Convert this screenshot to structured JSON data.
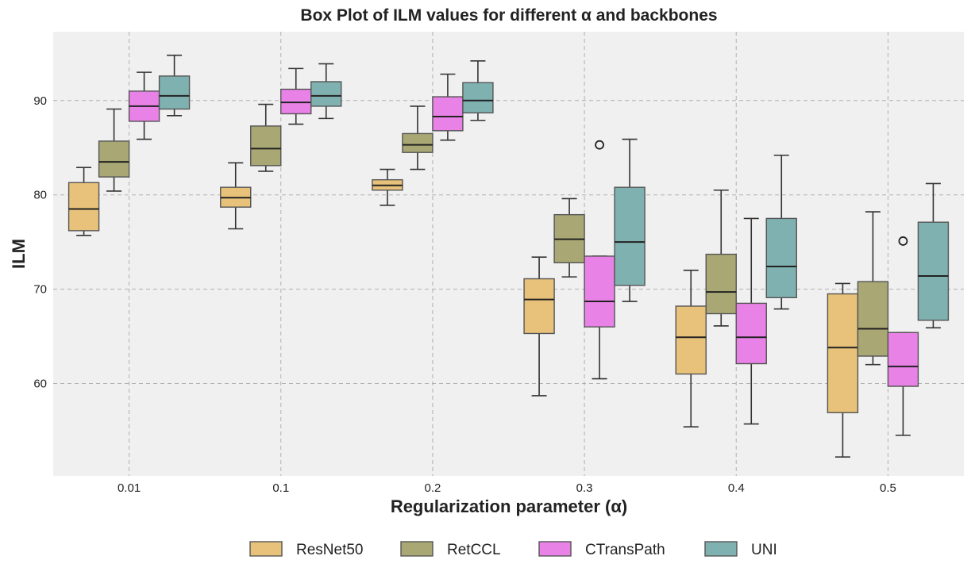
{
  "chart_data": {
    "type": "boxplot",
    "title": "Box Plot of ILM values for different α and backbones",
    "xlabel": "Regularization parameter (α)",
    "ylabel": "ILM",
    "categories": [
      "0.01",
      "0.1",
      "0.2",
      "0.3",
      "0.4",
      "0.5"
    ],
    "ylim": [
      50.2,
      97.3
    ],
    "yticks": [
      60,
      70,
      80,
      90
    ],
    "grid": true,
    "legend_position": "bottom-center",
    "series": [
      {
        "name": "ResNet50",
        "color": "#e8c27a",
        "boxes": [
          {
            "whislo": 75.7,
            "q1": 76.2,
            "med": 78.5,
            "q3": 81.3,
            "whishi": 82.9,
            "fliers": []
          },
          {
            "whislo": 76.4,
            "q1": 78.7,
            "med": 79.7,
            "q3": 80.8,
            "whishi": 83.4,
            "fliers": []
          },
          {
            "whislo": 78.9,
            "q1": 80.5,
            "med": 81.0,
            "q3": 81.6,
            "whishi": 82.7,
            "fliers": []
          },
          {
            "whislo": 58.7,
            "q1": 65.3,
            "med": 68.9,
            "q3": 71.1,
            "whishi": 73.4,
            "fliers": []
          },
          {
            "whislo": 55.4,
            "q1": 61.0,
            "med": 64.9,
            "q3": 68.2,
            "whishi": 72.0,
            "fliers": []
          },
          {
            "whislo": 52.2,
            "q1": 56.9,
            "med": 63.8,
            "q3": 69.5,
            "whishi": 70.6,
            "fliers": []
          }
        ]
      },
      {
        "name": "RetCCL",
        "color": "#a9a874",
        "boxes": [
          {
            "whislo": 80.4,
            "q1": 81.9,
            "med": 83.5,
            "q3": 85.7,
            "whishi": 89.1,
            "fliers": []
          },
          {
            "whislo": 82.5,
            "q1": 83.1,
            "med": 84.9,
            "q3": 87.3,
            "whishi": 89.6,
            "fliers": []
          },
          {
            "whislo": 82.7,
            "q1": 84.5,
            "med": 85.3,
            "q3": 86.5,
            "whishi": 89.4,
            "fliers": []
          },
          {
            "whislo": 71.3,
            "q1": 72.8,
            "med": 75.3,
            "q3": 77.9,
            "whishi": 79.6,
            "fliers": []
          },
          {
            "whislo": 66.1,
            "q1": 67.4,
            "med": 69.7,
            "q3": 73.7,
            "whishi": 80.5,
            "fliers": []
          },
          {
            "whislo": 62.0,
            "q1": 62.9,
            "med": 65.8,
            "q3": 70.8,
            "whishi": 78.2,
            "fliers": []
          }
        ]
      },
      {
        "name": "CTransPath",
        "color": "#e982e6",
        "boxes": [
          {
            "whislo": 85.9,
            "q1": 87.8,
            "med": 89.4,
            "q3": 91.0,
            "whishi": 93.0,
            "fliers": []
          },
          {
            "whislo": 87.5,
            "q1": 88.6,
            "med": 89.8,
            "q3": 91.2,
            "whishi": 93.4,
            "fliers": []
          },
          {
            "whislo": 85.8,
            "q1": 86.8,
            "med": 88.3,
            "q3": 90.4,
            "whishi": 92.8,
            "fliers": []
          },
          {
            "whislo": 60.5,
            "q1": 66.0,
            "med": 68.7,
            "q3": 73.5,
            "whishi": 73.5,
            "fliers": [
              85.3
            ]
          },
          {
            "whislo": 55.7,
            "q1": 62.1,
            "med": 64.9,
            "q3": 68.5,
            "whishi": 77.5,
            "fliers": []
          },
          {
            "whislo": 54.5,
            "q1": 59.7,
            "med": 61.8,
            "q3": 65.4,
            "whishi": 65.4,
            "fliers": [
              75.1
            ]
          }
        ]
      },
      {
        "name": "UNI",
        "color": "#7fb1b0",
        "boxes": [
          {
            "whislo": 88.4,
            "q1": 89.1,
            "med": 90.5,
            "q3": 92.6,
            "whishi": 94.8,
            "fliers": []
          },
          {
            "whislo": 88.1,
            "q1": 89.4,
            "med": 90.5,
            "q3": 92.0,
            "whishi": 93.9,
            "fliers": []
          },
          {
            "whislo": 87.9,
            "q1": 88.7,
            "med": 90.0,
            "q3": 91.9,
            "whishi": 94.2,
            "fliers": []
          },
          {
            "whislo": 68.7,
            "q1": 70.4,
            "med": 75.0,
            "q3": 80.8,
            "whishi": 85.9,
            "fliers": []
          },
          {
            "whislo": 67.9,
            "q1": 69.1,
            "med": 72.4,
            "q3": 77.5,
            "whishi": 84.2,
            "fliers": []
          },
          {
            "whislo": 65.9,
            "q1": 66.7,
            "med": 71.4,
            "q3": 77.1,
            "whishi": 81.2,
            "fliers": []
          }
        ]
      }
    ]
  }
}
